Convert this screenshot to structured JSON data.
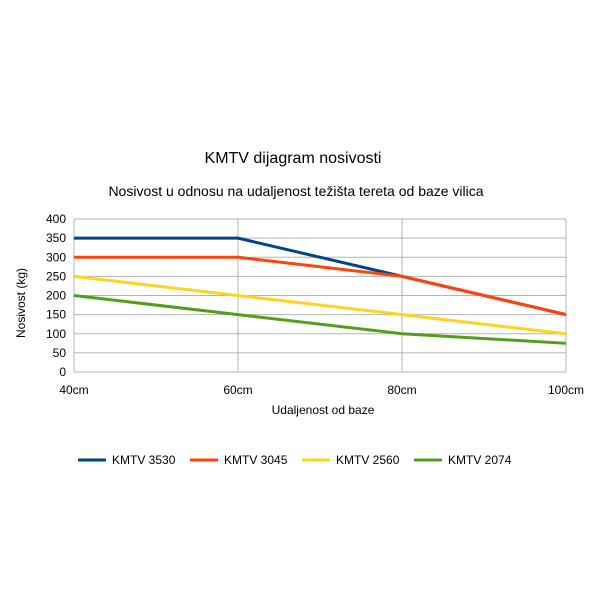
{
  "chart_data": {
    "type": "line",
    "title": "KMTV dijagram nosivosti",
    "subtitle": "Nosivost u odnosu na udaljenost težišta tereta od baze vilica",
    "xlabel": "Udaljenost od baze",
    "ylabel": "Nosivost (kg)",
    "categories": [
      "40cm",
      "60cm",
      "80cm",
      "100cm"
    ],
    "ylim": [
      0,
      400
    ],
    "yticks": [
      0,
      50,
      100,
      150,
      200,
      250,
      300,
      350,
      400
    ],
    "grid": true,
    "legend_position": "bottom",
    "series": [
      {
        "name": "KMTV 3530",
        "color": "#004586",
        "values": [
          350,
          350,
          250,
          150
        ]
      },
      {
        "name": "KMTV 3045",
        "color": "#ff420e",
        "values": [
          300,
          300,
          250,
          150
        ]
      },
      {
        "name": "KMTV 2560",
        "color": "#ffd320",
        "values": [
          250,
          200,
          150,
          100
        ]
      },
      {
        "name": "KMTV 2074",
        "color": "#579d1c",
        "values": [
          200,
          150,
          100,
          75
        ]
      }
    ]
  }
}
